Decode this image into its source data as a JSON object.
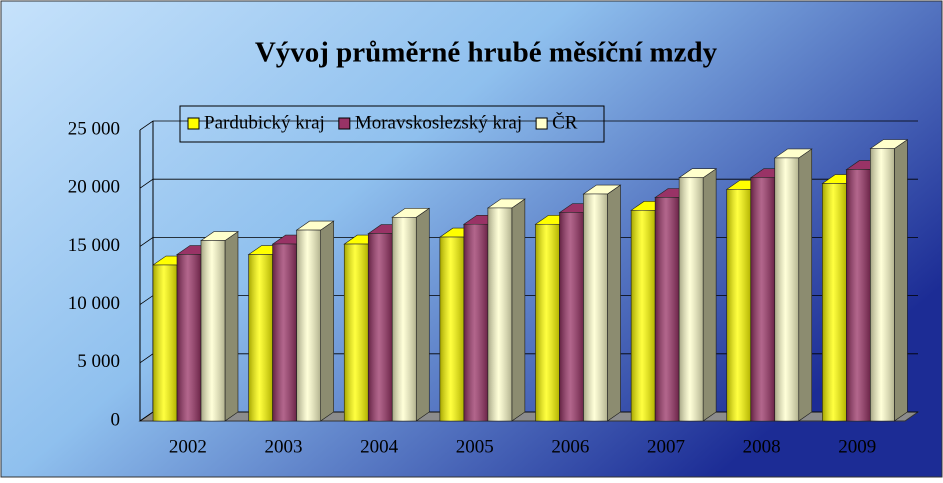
{
  "chart_data": {
    "type": "bar3d",
    "title": "Vývoj průměrné hrubé měsíční mzdy",
    "categories": [
      "2002",
      "2003",
      "2004",
      "2005",
      "2006",
      "2007",
      "2008",
      "2009"
    ],
    "series": [
      {
        "name": "Pardubický kraj",
        "color": "#ffff00",
        "values": [
          13400,
          14300,
          15200,
          15800,
          16900,
          18100,
          19900,
          20400
        ]
      },
      {
        "name": "Moravskoslezský kraj",
        "color": "#993366",
        "values": [
          14300,
          15200,
          16100,
          16900,
          17900,
          19200,
          20900,
          21600
        ]
      },
      {
        "name": "ČR",
        "color": "#ffffcc",
        "values": [
          15500,
          16400,
          17500,
          18300,
          19500,
          20900,
          22600,
          23400
        ]
      }
    ],
    "ylim": [
      0,
      25000
    ],
    "yticks": [
      0,
      {
        "value": 5000,
        "label": "5 000"
      },
      {
        "value": 10000,
        "label": "10 000"
      },
      {
        "value": 15000,
        "label": "15 000"
      },
      {
        "value": 20000,
        "label": "20 000"
      },
      {
        "value": 25000,
        "label": "25 000"
      }
    ],
    "grid": true,
    "legend": "top"
  }
}
